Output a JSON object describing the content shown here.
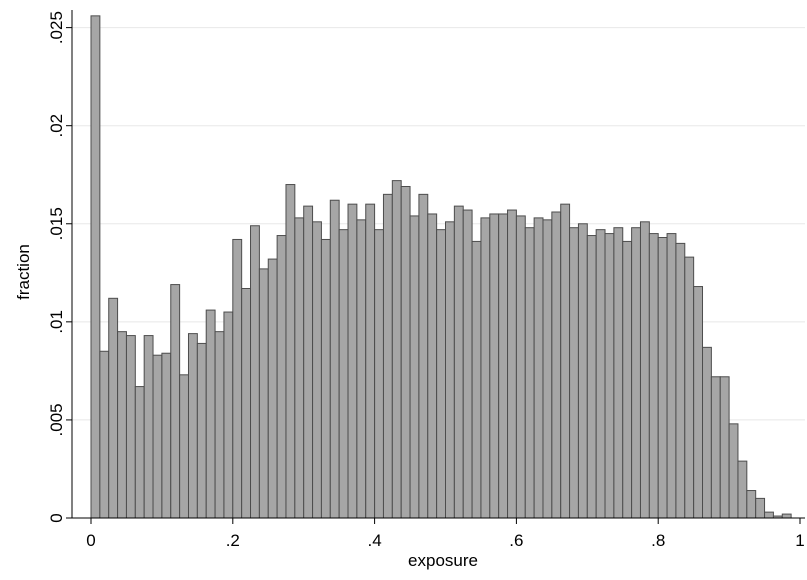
{
  "chart_data": {
    "type": "bar",
    "subtype": "histogram",
    "xlabel": "exposure",
    "ylabel": "fraction",
    "xlim": [
      0,
      1
    ],
    "ylim": [
      0,
      0.026
    ],
    "grid": true,
    "x_ticks": [
      {
        "value": 0,
        "label": "0"
      },
      {
        "value": 0.2,
        "label": ".2"
      },
      {
        "value": 0.4,
        "label": ".4"
      },
      {
        "value": 0.6,
        "label": ".6"
      },
      {
        "value": 0.8,
        "label": ".8"
      },
      {
        "value": 1,
        "label": "1"
      }
    ],
    "y_ticks": [
      {
        "value": 0,
        "label": "0"
      },
      {
        "value": 0.005,
        "label": ".005"
      },
      {
        "value": 0.01,
        "label": ".01"
      },
      {
        "value": 0.015,
        "label": ".015"
      },
      {
        "value": 0.02,
        "label": ".02"
      },
      {
        "value": 0.025,
        "label": ".025"
      }
    ],
    "bin_start": 0,
    "bin_width": 0.0125,
    "values": [
      0.0256,
      0.0085,
      0.0112,
      0.0095,
      0.0093,
      0.0067,
      0.0093,
      0.0083,
      0.0084,
      0.0119,
      0.0073,
      0.0094,
      0.0089,
      0.0106,
      0.0095,
      0.0105,
      0.0142,
      0.0117,
      0.0149,
      0.0127,
      0.0132,
      0.0144,
      0.017,
      0.0153,
      0.0159,
      0.0151,
      0.0142,
      0.0162,
      0.0147,
      0.016,
      0.0152,
      0.016,
      0.0147,
      0.0165,
      0.0172,
      0.0169,
      0.0154,
      0.0165,
      0.0155,
      0.0147,
      0.0151,
      0.0159,
      0.0157,
      0.0141,
      0.0153,
      0.0155,
      0.0155,
      0.0157,
      0.0154,
      0.0148,
      0.0153,
      0.0152,
      0.0156,
      0.016,
      0.0148,
      0.015,
      0.0144,
      0.0147,
      0.0145,
      0.0148,
      0.0141,
      0.0148,
      0.0151,
      0.0145,
      0.0143,
      0.0145,
      0.014,
      0.0133,
      0.0118,
      0.0087,
      0.0072,
      0.0072,
      0.0048,
      0.0029,
      0.0014,
      0.001,
      0.0003,
      0.0001,
      0.0002
    ],
    "bar_color": "#a6a6a6",
    "bar_edge_color": "#4d4d4d",
    "grid_color": "#e8e8e8"
  }
}
